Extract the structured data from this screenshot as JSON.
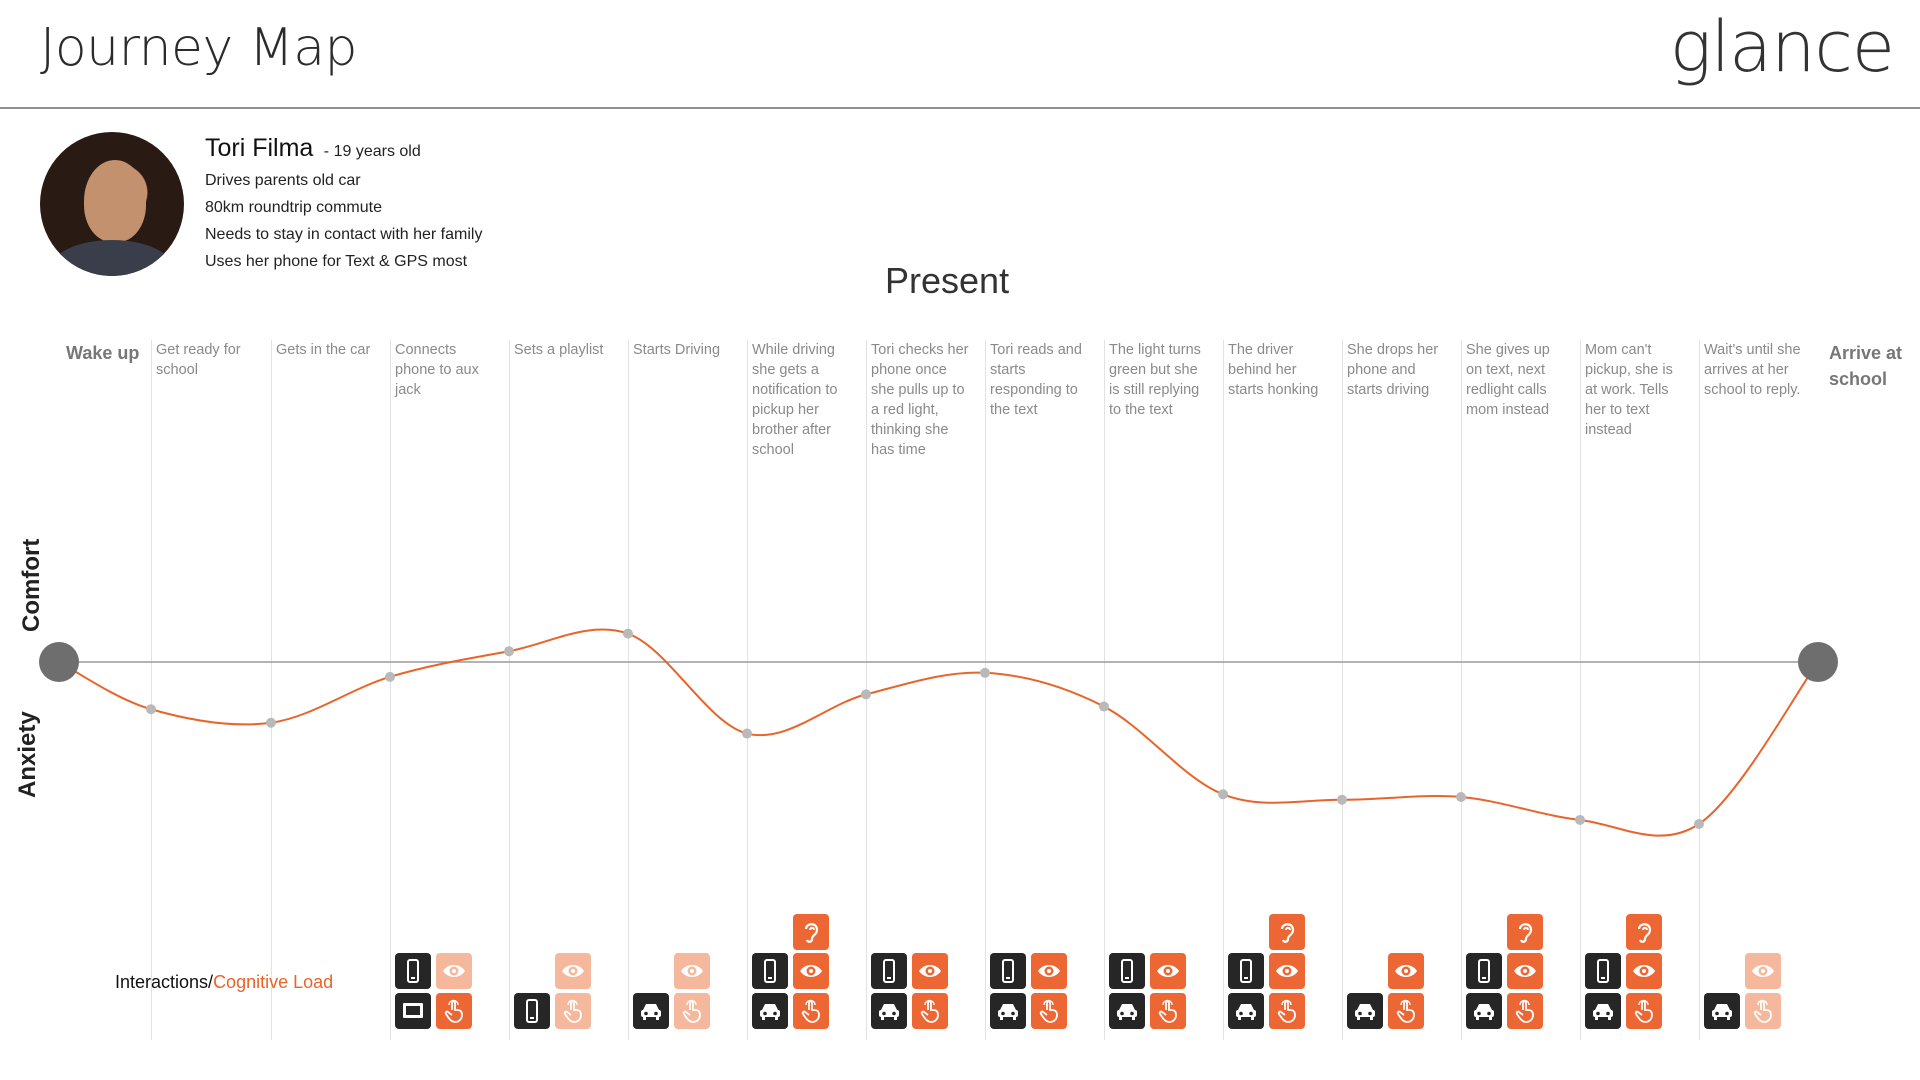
{
  "header": {
    "title": "Journey Map",
    "logo_text": "glance"
  },
  "persona": {
    "name": "Tori Filma",
    "age_text": "- 19 years old",
    "details": [
      "Drives parents old car",
      "80km roundtrip commute",
      "Needs to stay in contact with her family",
      "Uses her phone for Text & GPS most"
    ]
  },
  "section_title": "Present",
  "axis": {
    "top": "Comfort",
    "bottom": "Anxiety"
  },
  "interactions_label": {
    "prefix": "Interactions/",
    "accent": "Cognitive Load"
  },
  "colors": {
    "accent": "#e8642a",
    "dark_tile": "#262626",
    "orange_tile": "#ec6733",
    "light_tile": "#f6b89c",
    "curve": "#e8642a"
  },
  "steps": [
    {
      "label": "Wake up",
      "comfort": 0.0
    },
    {
      "label": "Get ready for school",
      "comfort": -0.35
    },
    {
      "label": "Gets in the car",
      "comfort": -0.45
    },
    {
      "label": "Connects phone to aux jack",
      "comfort": -0.11
    },
    {
      "label": "Sets a playlist",
      "comfort": 0.08
    },
    {
      "label": "Starts Driving",
      "comfort": 0.21
    },
    {
      "label": "While driving she gets a notification to pickup her brother after school",
      "comfort": -0.53
    },
    {
      "label": "Tori checks her phone once she pulls up to a red light, thinking she has time",
      "comfort": -0.24
    },
    {
      "label": "Tori reads and starts responding to the text",
      "comfort": -0.08
    },
    {
      "label": "The light turns green but she is still replying to the text",
      "comfort": -0.33
    },
    {
      "label": "The driver behind her starts honking",
      "comfort": -0.98
    },
    {
      "label": "She drops her phone and starts driving",
      "comfort": -1.02
    },
    {
      "label": "She gives up on text, next redlight calls mom instead",
      "comfort": -1.0
    },
    {
      "label": "Mom can't pickup, she is at work. Tells her to text instead",
      "comfort": -1.17
    },
    {
      "label": "Wait's until she arrives at her school to reply.",
      "comfort": -1.2
    },
    {
      "label": "Arrive at school",
      "comfort": 0.0
    }
  ],
  "interactions": [
    {
      "step": 3,
      "tiles": [
        {
          "row": 1,
          "col": 0,
          "icon": "phone-icon",
          "style": "dark"
        },
        {
          "row": 1,
          "col": 1,
          "icon": "eye-icon",
          "style": "light"
        },
        {
          "row": 0,
          "col": 0,
          "icon": "car-display-icon",
          "style": "dark"
        },
        {
          "row": 0,
          "col": 1,
          "icon": "hand-touch-icon",
          "style": "orange"
        }
      ]
    },
    {
      "step": 4,
      "tiles": [
        {
          "row": 1,
          "col": 1,
          "icon": "eye-icon",
          "style": "light"
        },
        {
          "row": 0,
          "col": 0,
          "icon": "phone-icon",
          "style": "dark"
        },
        {
          "row": 0,
          "col": 1,
          "icon": "hand-touch-icon",
          "style": "light"
        }
      ]
    },
    {
      "step": 5,
      "tiles": [
        {
          "row": 1,
          "col": 1,
          "icon": "eye-icon",
          "style": "light"
        },
        {
          "row": 0,
          "col": 0,
          "icon": "car-icon",
          "style": "dark"
        },
        {
          "row": 0,
          "col": 1,
          "icon": "hand-touch-icon",
          "style": "light"
        }
      ]
    },
    {
      "step": 6,
      "tiles": [
        {
          "row": 2,
          "col": 1,
          "icon": "ear-icon",
          "style": "orange"
        },
        {
          "row": 1,
          "col": 0,
          "icon": "phone-icon",
          "style": "dark"
        },
        {
          "row": 1,
          "col": 1,
          "icon": "eye-icon",
          "style": "orange"
        },
        {
          "row": 0,
          "col": 0,
          "icon": "car-icon",
          "style": "dark"
        },
        {
          "row": 0,
          "col": 1,
          "icon": "hand-touch-icon",
          "style": "orange"
        }
      ]
    },
    {
      "step": 7,
      "tiles": [
        {
          "row": 1,
          "col": 0,
          "icon": "phone-icon",
          "style": "dark"
        },
        {
          "row": 1,
          "col": 1,
          "icon": "eye-icon",
          "style": "orange"
        },
        {
          "row": 0,
          "col": 0,
          "icon": "car-icon",
          "style": "dark"
        },
        {
          "row": 0,
          "col": 1,
          "icon": "hand-touch-icon",
          "style": "orange"
        }
      ]
    },
    {
      "step": 8,
      "tiles": [
        {
          "row": 1,
          "col": 0,
          "icon": "phone-icon",
          "style": "dark"
        },
        {
          "row": 1,
          "col": 1,
          "icon": "eye-icon",
          "style": "orange"
        },
        {
          "row": 0,
          "col": 0,
          "icon": "car-icon",
          "style": "dark"
        },
        {
          "row": 0,
          "col": 1,
          "icon": "hand-touch-icon",
          "style": "orange"
        }
      ]
    },
    {
      "step": 9,
      "tiles": [
        {
          "row": 1,
          "col": 0,
          "icon": "phone-icon",
          "style": "dark"
        },
        {
          "row": 1,
          "col": 1,
          "icon": "eye-icon",
          "style": "orange"
        },
        {
          "row": 0,
          "col": 0,
          "icon": "car-icon",
          "style": "dark"
        },
        {
          "row": 0,
          "col": 1,
          "icon": "hand-touch-icon",
          "style": "orange"
        }
      ]
    },
    {
      "step": 10,
      "tiles": [
        {
          "row": 2,
          "col": 1,
          "icon": "ear-icon",
          "style": "orange"
        },
        {
          "row": 1,
          "col": 0,
          "icon": "phone-icon",
          "style": "dark"
        },
        {
          "row": 1,
          "col": 1,
          "icon": "eye-icon",
          "style": "orange"
        },
        {
          "row": 0,
          "col": 0,
          "icon": "car-icon",
          "style": "dark"
        },
        {
          "row": 0,
          "col": 1,
          "icon": "hand-touch-icon",
          "style": "orange"
        }
      ]
    },
    {
      "step": 11,
      "tiles": [
        {
          "row": 1,
          "col": 1,
          "icon": "eye-icon",
          "style": "orange"
        },
        {
          "row": 0,
          "col": 0,
          "icon": "car-icon",
          "style": "dark"
        },
        {
          "row": 0,
          "col": 1,
          "icon": "hand-touch-icon",
          "style": "orange"
        }
      ]
    },
    {
      "step": 12,
      "tiles": [
        {
          "row": 2,
          "col": 1,
          "icon": "ear-icon",
          "style": "orange"
        },
        {
          "row": 1,
          "col": 0,
          "icon": "phone-icon",
          "style": "dark"
        },
        {
          "row": 1,
          "col": 1,
          "icon": "eye-icon",
          "style": "orange"
        },
        {
          "row": 0,
          "col": 0,
          "icon": "car-icon",
          "style": "dark"
        },
        {
          "row": 0,
          "col": 1,
          "icon": "hand-touch-icon",
          "style": "orange"
        }
      ]
    },
    {
      "step": 13,
      "tiles": [
        {
          "row": 2,
          "col": 1,
          "icon": "ear-icon",
          "style": "orange"
        },
        {
          "row": 1,
          "col": 0,
          "icon": "phone-icon",
          "style": "dark"
        },
        {
          "row": 1,
          "col": 1,
          "icon": "eye-icon",
          "style": "orange"
        },
        {
          "row": 0,
          "col": 0,
          "icon": "car-icon",
          "style": "dark"
        },
        {
          "row": 0,
          "col": 1,
          "icon": "hand-touch-icon",
          "style": "orange"
        }
      ]
    },
    {
      "step": 14,
      "tiles": [
        {
          "row": 1,
          "col": 1,
          "icon": "eye-icon",
          "style": "light"
        },
        {
          "row": 0,
          "col": 0,
          "icon": "car-icon",
          "style": "dark"
        },
        {
          "row": 0,
          "col": 1,
          "icon": "hand-touch-icon",
          "style": "light"
        }
      ]
    }
  ]
}
